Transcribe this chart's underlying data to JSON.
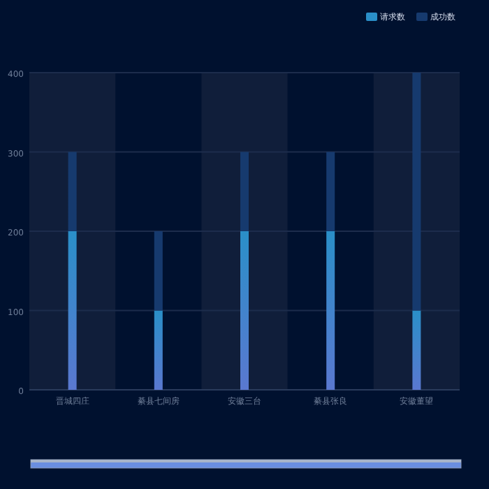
{
  "chart_data": {
    "type": "bar",
    "categories": [
      "晋城四庄",
      "綦县七间房",
      "安徽三台",
      "綦县张良",
      "安徽董望"
    ],
    "series": [
      {
        "name": "请求数",
        "color": "#2a8fc8",
        "values": [
          200,
          100,
          200,
          200,
          100
        ]
      },
      {
        "name": "成功数",
        "color": "#163a6e",
        "values": [
          100,
          100,
          100,
          100,
          300
        ]
      }
    ],
    "stacked": true,
    "bands": [
      {
        "axis": "x",
        "from": "晋城四庄",
        "to": "晋城四庄",
        "color": "#101e3a"
      },
      {
        "axis": "x",
        "from": "安徽三台",
        "to": "安徽三台",
        "color": "#101e3a"
      },
      {
        "axis": "x",
        "from": "安徽董望",
        "to": "安徽董望",
        "color": "#101e3a"
      }
    ],
    "ylim": [
      0,
      400
    ],
    "yticks": [
      0,
      100,
      200,
      300,
      400
    ],
    "grid": "y",
    "legend": "top right"
  }
}
